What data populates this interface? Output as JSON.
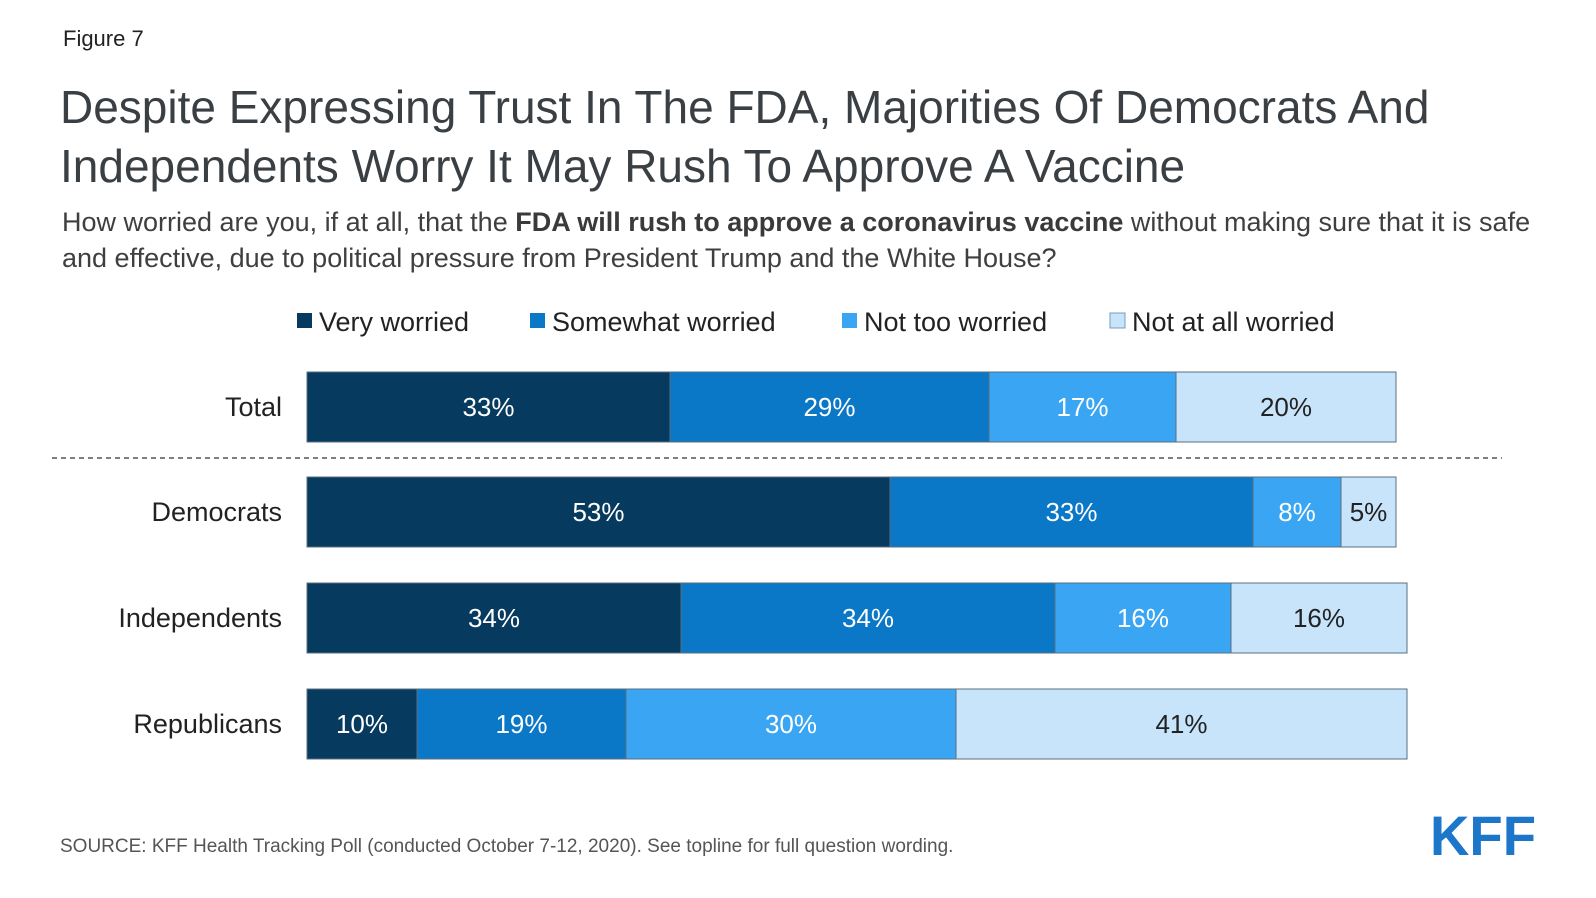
{
  "header": {
    "figure_label": "Figure 7",
    "title": "Despite Expressing Trust In The FDA, Majorities Of Democrats And Independents Worry It May Rush To Approve A Vaccine",
    "subtitle_pre": "How worried are you, if at all, that the ",
    "subtitle_bold": "FDA will rush to approve a coronavirus vaccine",
    "subtitle_post": " without making sure that it is safe and effective, due to political pressure from President Trump and the White House?"
  },
  "chart_data": {
    "type": "bar",
    "orientation": "horizontal",
    "stacked": true,
    "categories": [
      "Total",
      "Democrats",
      "Independents",
      "Republicans"
    ],
    "series": [
      {
        "name": "Very worried",
        "color": "#063a5e",
        "values": [
          33,
          53,
          34,
          10
        ],
        "labels": [
          "33%",
          "53%",
          "34%",
          "10%"
        ],
        "label_color": "#ffffff"
      },
      {
        "name": "Somewhat worried",
        "color": "#0a77c7",
        "values": [
          29,
          33,
          34,
          19
        ],
        "labels": [
          "29%",
          "33%",
          "34%",
          "19%"
        ],
        "label_color": "#ffffff"
      },
      {
        "name": "Not too worried",
        "color": "#3aa6f3",
        "values": [
          17,
          8,
          16,
          30
        ],
        "labels": [
          "17%",
          "8%",
          "16%",
          "30%"
        ],
        "label_color": "#ffffff"
      },
      {
        "name": "Not at all worried",
        "color": "#c7e4fb",
        "values": [
          20,
          5,
          16,
          41
        ],
        "labels": [
          "20%",
          "5%",
          "16%",
          "41%"
        ],
        "label_color": "#222222"
      }
    ],
    "legend_position": "top",
    "separator_after": "Total"
  },
  "footer": {
    "source": "SOURCE: KFF Health Tracking Poll (conducted October 7-12, 2020). See topline for full question wording.",
    "logo_text": "KFF"
  }
}
